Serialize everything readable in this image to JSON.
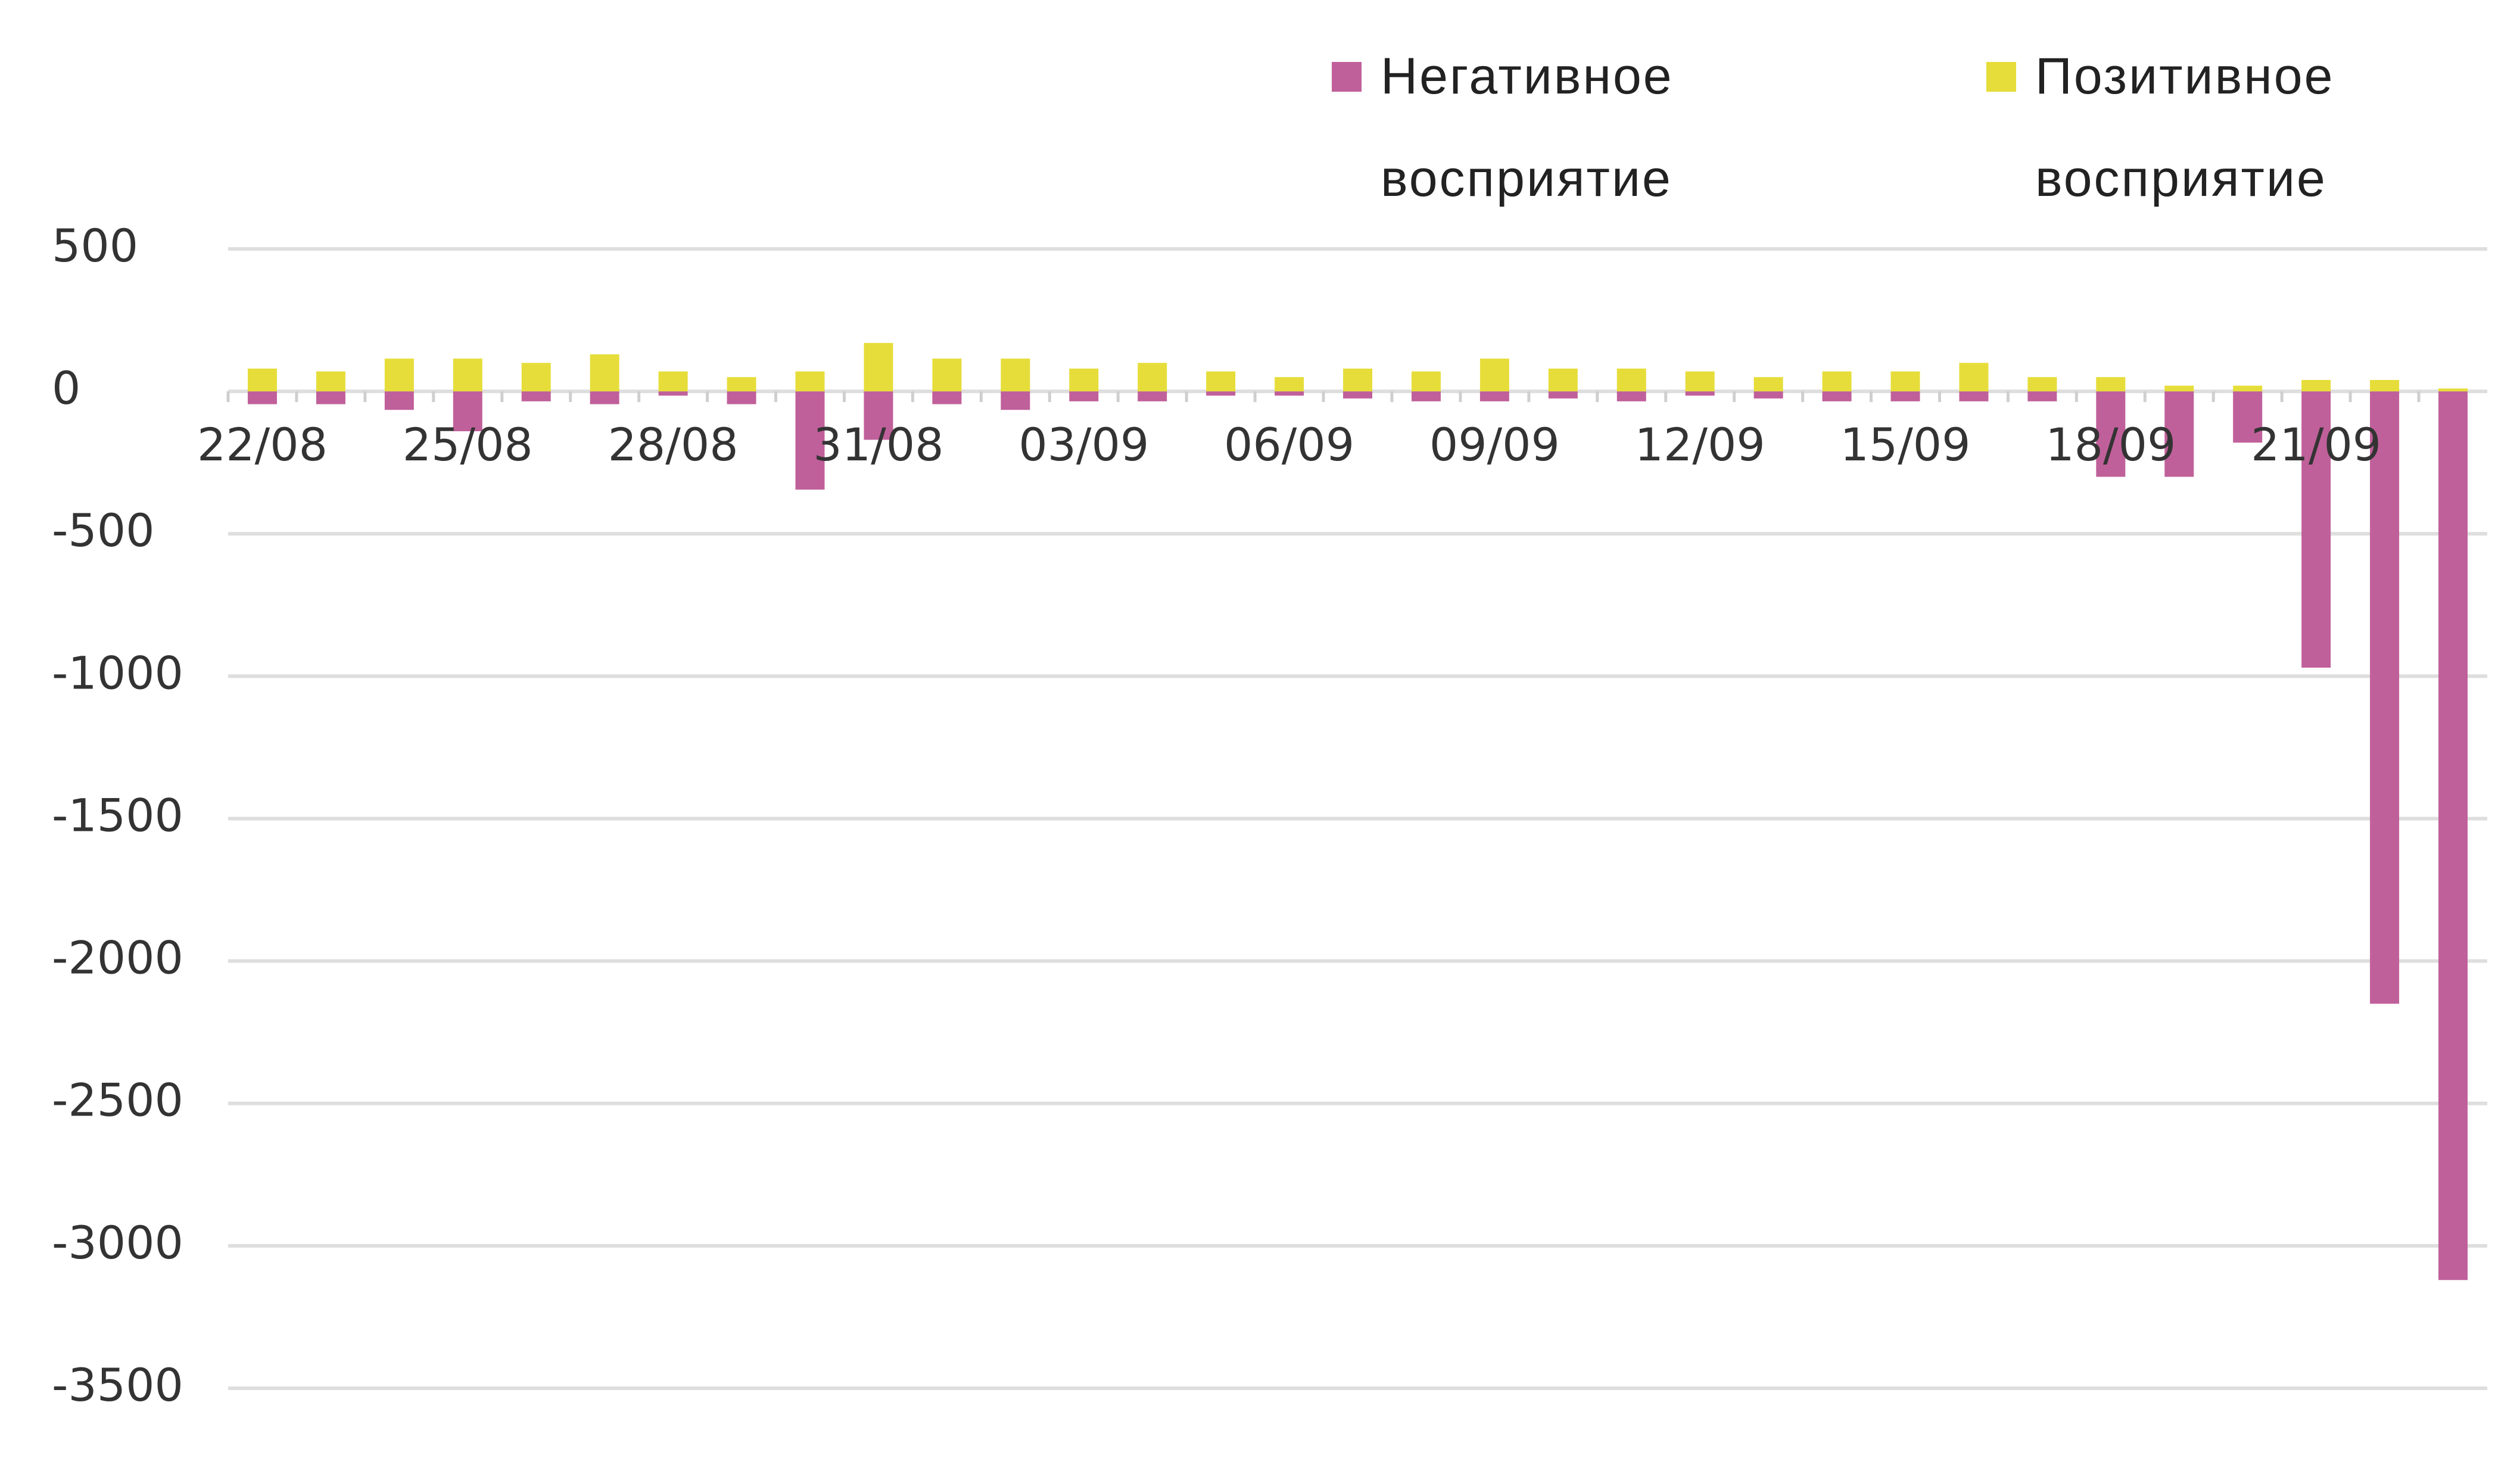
{
  "chart_data": {
    "type": "bar",
    "categories": [
      "22/08",
      null,
      null,
      "25/08",
      null,
      null,
      "28/08",
      null,
      null,
      "31/08",
      null,
      null,
      "03/09",
      null,
      null,
      "06/09",
      null,
      null,
      "09/09",
      null,
      null,
      "12/09",
      null,
      null,
      "15/09",
      null,
      null,
      "18/09",
      null,
      null,
      "21/09",
      null,
      null
    ],
    "series": [
      {
        "name": "Негативное восприятие",
        "color": "#c0609a",
        "values": [
          -45,
          -45,
          -65,
          -140,
          -35,
          -45,
          -15,
          -45,
          -345,
          -170,
          -45,
          -65,
          -35,
          -35,
          -15,
          -15,
          -25,
          -35,
          -35,
          -25,
          -35,
          -15,
          -25,
          -35,
          -35,
          -35,
          -35,
          -300,
          -300,
          -180,
          -970,
          -2150,
          -3120
        ]
      },
      {
        "name": "Позитивное восприятие",
        "color": "#e6dd3a",
        "values": [
          80,
          70,
          115,
          115,
          100,
          130,
          70,
          50,
          70,
          170,
          115,
          115,
          80,
          100,
          70,
          50,
          80,
          70,
          115,
          80,
          80,
          70,
          50,
          70,
          70,
          100,
          50,
          50,
          20,
          20,
          40,
          40,
          10
        ]
      }
    ],
    "ylim": [
      -3500,
      500
    ],
    "yticks": [
      500,
      0,
      -500,
      -1000,
      -1500,
      -2000,
      -2500,
      -3000,
      -3500
    ],
    "grid": true
  }
}
